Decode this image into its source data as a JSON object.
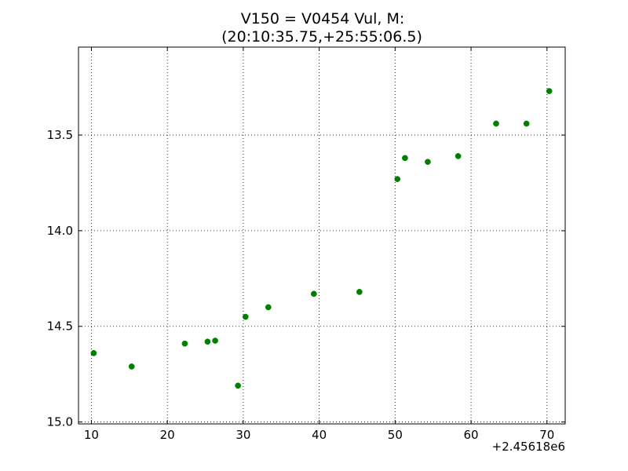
{
  "chart_data": {
    "type": "scatter",
    "title_line1": "V150 = V0454 Vul, M:",
    "title_line2": "(20:10:35.75,+25:55:06.5)",
    "xlabel": "",
    "ylabel": "",
    "x_offset_label": "+2.45618e6",
    "xlim": [
      8.3,
      72.4
    ],
    "ylim": [
      15.01,
      13.04
    ],
    "y_inverted": true,
    "grid": true,
    "marker_color": "#007f00",
    "xticks": [
      10,
      20,
      30,
      40,
      50,
      60,
      70
    ],
    "xtick_labels": [
      "10",
      "20",
      "30",
      "40",
      "50",
      "60",
      "70"
    ],
    "yticks": [
      13.5,
      14.0,
      14.5,
      15.0
    ],
    "ytick_labels": [
      "13.5",
      "14.0",
      "14.5",
      "15.0"
    ],
    "points": [
      {
        "x": 10.3,
        "y": 14.64
      },
      {
        "x": 15.3,
        "y": 14.71
      },
      {
        "x": 22.3,
        "y": 14.59
      },
      {
        "x": 25.3,
        "y": 14.58
      },
      {
        "x": 26.3,
        "y": 14.575
      },
      {
        "x": 29.3,
        "y": 14.81
      },
      {
        "x": 30.3,
        "y": 14.45
      },
      {
        "x": 33.3,
        "y": 14.4
      },
      {
        "x": 39.3,
        "y": 14.33
      },
      {
        "x": 45.3,
        "y": 14.32
      },
      {
        "x": 50.3,
        "y": 13.73
      },
      {
        "x": 51.3,
        "y": 13.62
      },
      {
        "x": 54.3,
        "y": 13.64
      },
      {
        "x": 58.3,
        "y": 13.61
      },
      {
        "x": 63.3,
        "y": 13.44
      },
      {
        "x": 67.3,
        "y": 13.44
      },
      {
        "x": 70.3,
        "y": 13.27
      }
    ]
  }
}
